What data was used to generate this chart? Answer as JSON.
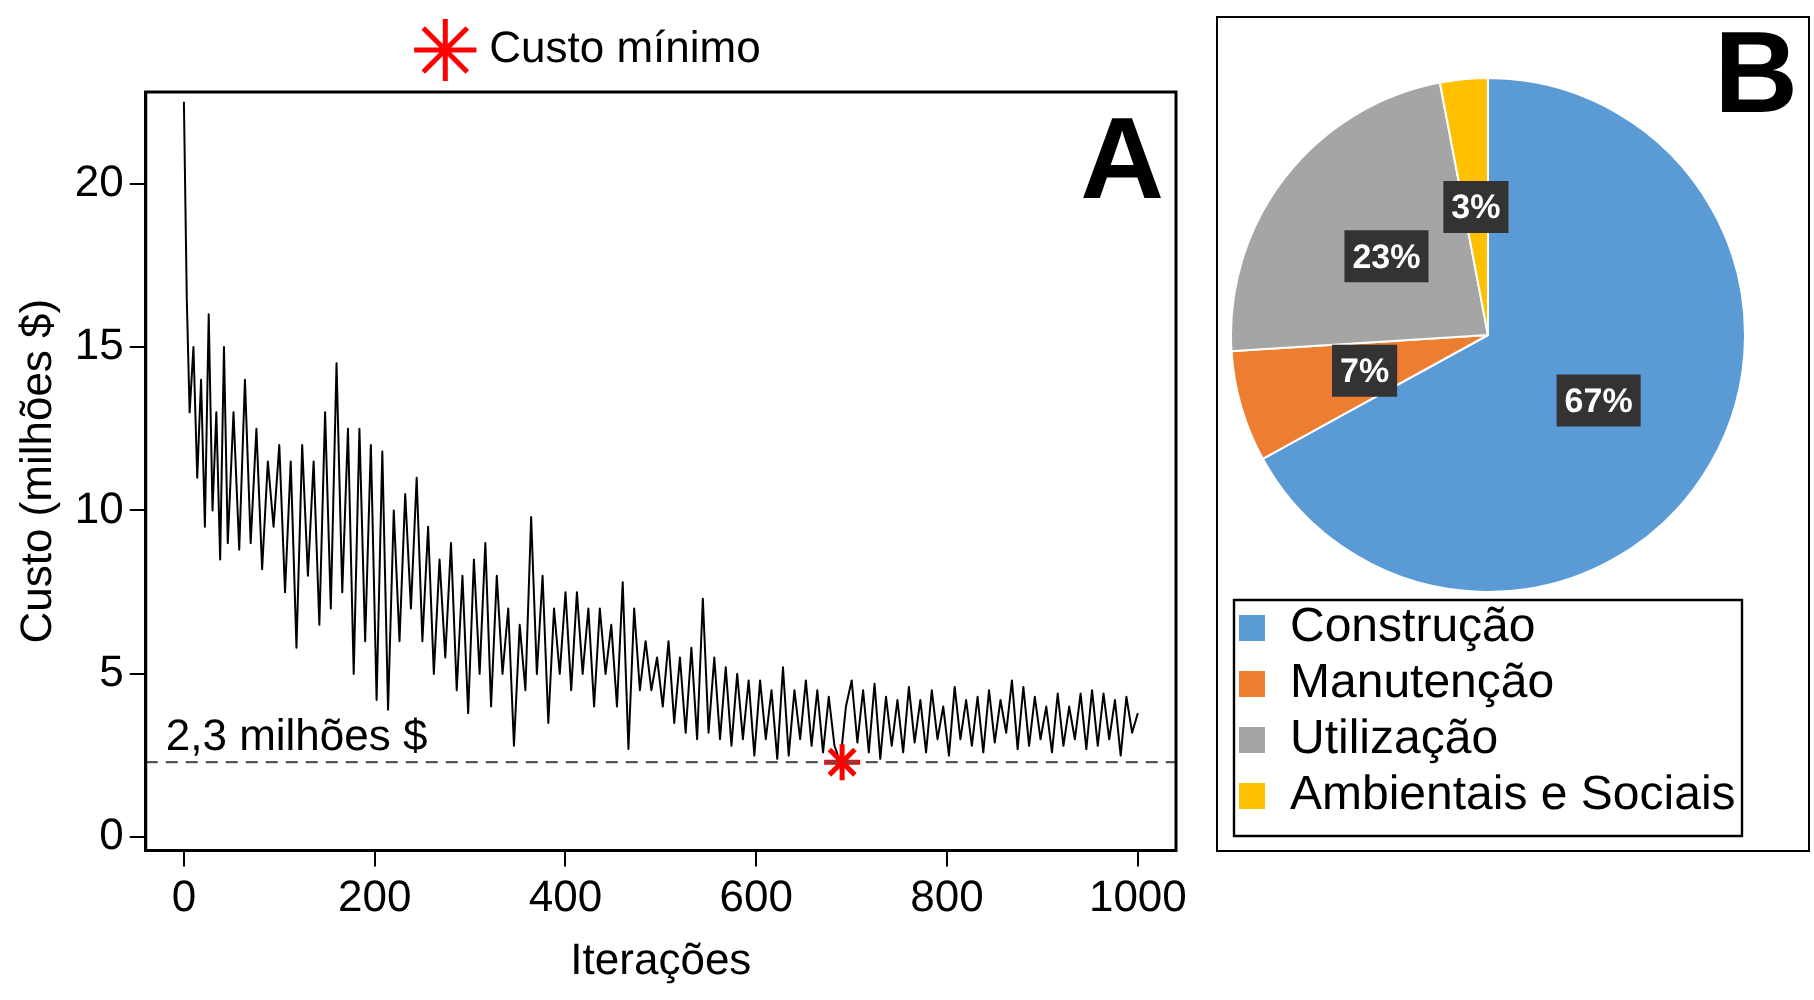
{
  "chart_data": [
    {
      "type": "line",
      "title": "A",
      "xlabel": "Iterações",
      "ylabel": "Custo (milhões $)",
      "xlim": [
        -40,
        1040
      ],
      "ylim": [
        -0.4,
        22.8
      ],
      "xticks": [
        0,
        200,
        400,
        600,
        800,
        1000
      ],
      "yticks": [
        0,
        5,
        10,
        15,
        20
      ],
      "legend": "top",
      "ref_lines": [
        {
          "axis": "y",
          "value": 2.3,
          "label": "2,3 milhões $",
          "color": "#555555",
          "line_style": "dashed"
        }
      ],
      "series": [
        {
          "type": "line",
          "color": "#000000",
          "marker": "none",
          "x": [
            0,
            3,
            6,
            10,
            14,
            18,
            22,
            26,
            30,
            34,
            38,
            42,
            46,
            52,
            58,
            64,
            70,
            76,
            82,
            88,
            94,
            100,
            106,
            112,
            118,
            124,
            130,
            136,
            142,
            148,
            154,
            160,
            166,
            172,
            178,
            184,
            190,
            196,
            202,
            208,
            214,
            220,
            226,
            232,
            238,
            244,
            250,
            256,
            262,
            268,
            274,
            280,
            286,
            292,
            298,
            304,
            310,
            316,
            322,
            328,
            334,
            340,
            346,
            352,
            358,
            364,
            370,
            376,
            382,
            388,
            394,
            400,
            406,
            412,
            418,
            424,
            430,
            436,
            442,
            448,
            454,
            460,
            466,
            472,
            478,
            484,
            490,
            496,
            502,
            508,
            514,
            520,
            526,
            532,
            538,
            544,
            550,
            556,
            562,
            568,
            574,
            580,
            586,
            592,
            598,
            604,
            610,
            616,
            622,
            628,
            634,
            640,
            646,
            652,
            658,
            664,
            670,
            676,
            682,
            688,
            694,
            700,
            706,
            712,
            718,
            724,
            730,
            736,
            742,
            748,
            754,
            760,
            766,
            772,
            778,
            784,
            790,
            796,
            802,
            808,
            814,
            820,
            826,
            832,
            838,
            844,
            850,
            856,
            862,
            868,
            874,
            880,
            886,
            892,
            898,
            904,
            910,
            916,
            922,
            928,
            934,
            940,
            946,
            952,
            958,
            964,
            970,
            976,
            982,
            988,
            994,
            1000
          ],
          "values": [
            22.5,
            16.5,
            13,
            15,
            11,
            14,
            9.5,
            16,
            10,
            13,
            8.5,
            15,
            9,
            13,
            8.8,
            14,
            9,
            12.5,
            8.2,
            11.5,
            9.5,
            12,
            7.5,
            11.5,
            5.8,
            12,
            8,
            11.5,
            6.5,
            13,
            7,
            14.5,
            7.5,
            12.5,
            5,
            12.5,
            6,
            12,
            4.2,
            11.8,
            3.9,
            10,
            6,
            10.5,
            7,
            11,
            6,
            9.5,
            5,
            8.5,
            5.5,
            9,
            4.5,
            8,
            3.8,
            8.5,
            5,
            9,
            4,
            8,
            5,
            7,
            2.8,
            6.5,
            4.5,
            9.8,
            5,
            8,
            3.5,
            7,
            5,
            7.5,
            4.5,
            7.5,
            5,
            7,
            4,
            7,
            5,
            6.5,
            4,
            7.8,
            2.7,
            7,
            4.5,
            6,
            4.5,
            5.5,
            4,
            6,
            3.5,
            5.5,
            3.2,
            5.8,
            3,
            7.3,
            3.2,
            5.5,
            3,
            5.2,
            2.8,
            5,
            3,
            4.8,
            2.5,
            4.8,
            3,
            4.5,
            2.4,
            5.2,
            2.5,
            4.5,
            3,
            4.8,
            2.8,
            4.5,
            2.6,
            4.3,
            2.8,
            2.3,
            4,
            4.8,
            2.9,
            4.5,
            2.6,
            4.7,
            2.4,
            4.3,
            2.8,
            4.2,
            2.6,
            4.6,
            2.9,
            4.2,
            2.6,
            4.5,
            3,
            4,
            2.5,
            4.6,
            3,
            4.2,
            2.8,
            4.3,
            2.6,
            4.5,
            2.9,
            4.2,
            3.2,
            4.8,
            2.7,
            4.6,
            2.8,
            4.3,
            3,
            4,
            2.6,
            4.4,
            2.8,
            4,
            3,
            4.4,
            2.7,
            4.5,
            2.8,
            4.4,
            3,
            4.2,
            2.5,
            4.3,
            3.2,
            3.8
          ]
        },
        {
          "type": "scatter",
          "name": "Custo mínimo",
          "color": "#ff0000",
          "marker": "cross",
          "x": [
            690
          ],
          "values": [
            2.3
          ]
        }
      ]
    },
    {
      "type": "pie",
      "title": "B",
      "categories": [
        "Construção",
        "Manutenção",
        "Utilização",
        "Ambientais e Sociais"
      ],
      "values": [
        67,
        7,
        23,
        3
      ],
      "colors": [
        "#5b9bd5",
        "#ed7d31",
        "#a5a5a5",
        "#ffc000"
      ],
      "value_labels": [
        "67%",
        "7%",
        "23%",
        "3%"
      ],
      "legend": "bottom"
    }
  ]
}
